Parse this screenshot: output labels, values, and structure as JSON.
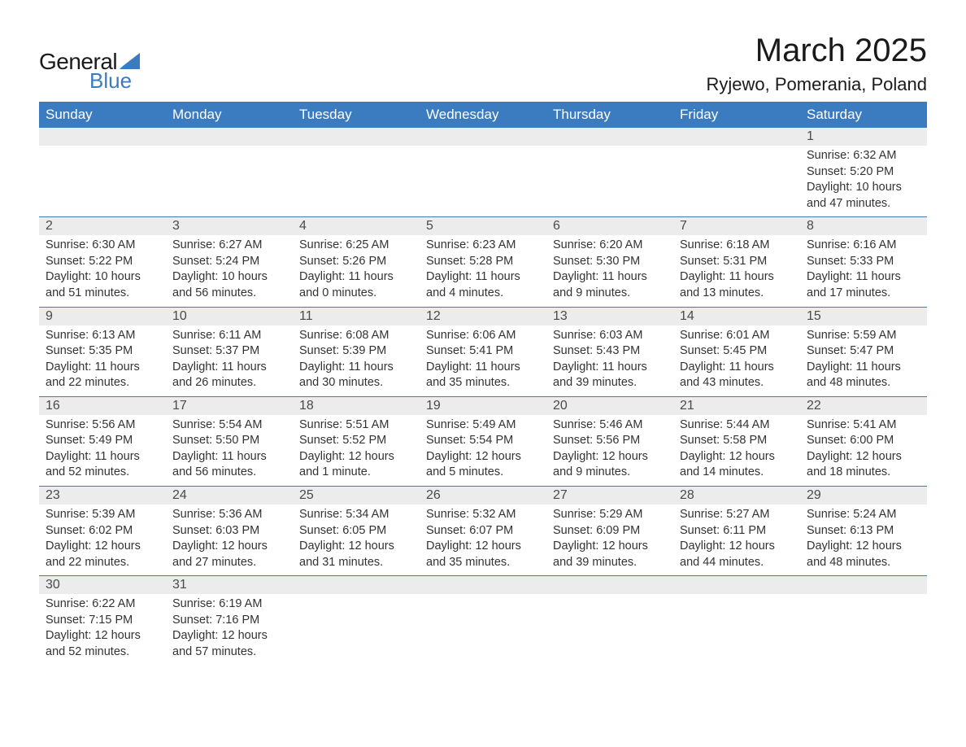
{
  "logo": {
    "text1": "General",
    "text2": "Blue",
    "accent_color": "#3b7bbf"
  },
  "title": "March 2025",
  "location": "Ryjewo, Pomerania, Poland",
  "colors": {
    "header_bg": "#3b7bbf",
    "header_fg": "#ffffff",
    "daynum_bg": "#ececec",
    "daynum_fg": "#4a4a4a",
    "body_fg": "#333333",
    "row_divider": "#3b7bbf",
    "page_bg": "#ffffff"
  },
  "typography": {
    "title_fontsize_pt": 30,
    "location_fontsize_pt": 17,
    "header_fontsize_pt": 13,
    "daynum_fontsize_pt": 12,
    "body_fontsize_pt": 11
  },
  "weekdays": [
    "Sunday",
    "Monday",
    "Tuesday",
    "Wednesday",
    "Thursday",
    "Friday",
    "Saturday"
  ],
  "weeks": [
    [
      {
        "n": "",
        "sr": "",
        "ss": "",
        "dl": ""
      },
      {
        "n": "",
        "sr": "",
        "ss": "",
        "dl": ""
      },
      {
        "n": "",
        "sr": "",
        "ss": "",
        "dl": ""
      },
      {
        "n": "",
        "sr": "",
        "ss": "",
        "dl": ""
      },
      {
        "n": "",
        "sr": "",
        "ss": "",
        "dl": ""
      },
      {
        "n": "",
        "sr": "",
        "ss": "",
        "dl": ""
      },
      {
        "n": "1",
        "sr": "Sunrise: 6:32 AM",
        "ss": "Sunset: 5:20 PM",
        "dl": "Daylight: 10 hours and 47 minutes."
      }
    ],
    [
      {
        "n": "2",
        "sr": "Sunrise: 6:30 AM",
        "ss": "Sunset: 5:22 PM",
        "dl": "Daylight: 10 hours and 51 minutes."
      },
      {
        "n": "3",
        "sr": "Sunrise: 6:27 AM",
        "ss": "Sunset: 5:24 PM",
        "dl": "Daylight: 10 hours and 56 minutes."
      },
      {
        "n": "4",
        "sr": "Sunrise: 6:25 AM",
        "ss": "Sunset: 5:26 PM",
        "dl": "Daylight: 11 hours and 0 minutes."
      },
      {
        "n": "5",
        "sr": "Sunrise: 6:23 AM",
        "ss": "Sunset: 5:28 PM",
        "dl": "Daylight: 11 hours and 4 minutes."
      },
      {
        "n": "6",
        "sr": "Sunrise: 6:20 AM",
        "ss": "Sunset: 5:30 PM",
        "dl": "Daylight: 11 hours and 9 minutes."
      },
      {
        "n": "7",
        "sr": "Sunrise: 6:18 AM",
        "ss": "Sunset: 5:31 PM",
        "dl": "Daylight: 11 hours and 13 minutes."
      },
      {
        "n": "8",
        "sr": "Sunrise: 6:16 AM",
        "ss": "Sunset: 5:33 PM",
        "dl": "Daylight: 11 hours and 17 minutes."
      }
    ],
    [
      {
        "n": "9",
        "sr": "Sunrise: 6:13 AM",
        "ss": "Sunset: 5:35 PM",
        "dl": "Daylight: 11 hours and 22 minutes."
      },
      {
        "n": "10",
        "sr": "Sunrise: 6:11 AM",
        "ss": "Sunset: 5:37 PM",
        "dl": "Daylight: 11 hours and 26 minutes."
      },
      {
        "n": "11",
        "sr": "Sunrise: 6:08 AM",
        "ss": "Sunset: 5:39 PM",
        "dl": "Daylight: 11 hours and 30 minutes."
      },
      {
        "n": "12",
        "sr": "Sunrise: 6:06 AM",
        "ss": "Sunset: 5:41 PM",
        "dl": "Daylight: 11 hours and 35 minutes."
      },
      {
        "n": "13",
        "sr": "Sunrise: 6:03 AM",
        "ss": "Sunset: 5:43 PM",
        "dl": "Daylight: 11 hours and 39 minutes."
      },
      {
        "n": "14",
        "sr": "Sunrise: 6:01 AM",
        "ss": "Sunset: 5:45 PM",
        "dl": "Daylight: 11 hours and 43 minutes."
      },
      {
        "n": "15",
        "sr": "Sunrise: 5:59 AM",
        "ss": "Sunset: 5:47 PM",
        "dl": "Daylight: 11 hours and 48 minutes."
      }
    ],
    [
      {
        "n": "16",
        "sr": "Sunrise: 5:56 AM",
        "ss": "Sunset: 5:49 PM",
        "dl": "Daylight: 11 hours and 52 minutes."
      },
      {
        "n": "17",
        "sr": "Sunrise: 5:54 AM",
        "ss": "Sunset: 5:50 PM",
        "dl": "Daylight: 11 hours and 56 minutes."
      },
      {
        "n": "18",
        "sr": "Sunrise: 5:51 AM",
        "ss": "Sunset: 5:52 PM",
        "dl": "Daylight: 12 hours and 1 minute."
      },
      {
        "n": "19",
        "sr": "Sunrise: 5:49 AM",
        "ss": "Sunset: 5:54 PM",
        "dl": "Daylight: 12 hours and 5 minutes."
      },
      {
        "n": "20",
        "sr": "Sunrise: 5:46 AM",
        "ss": "Sunset: 5:56 PM",
        "dl": "Daylight: 12 hours and 9 minutes."
      },
      {
        "n": "21",
        "sr": "Sunrise: 5:44 AM",
        "ss": "Sunset: 5:58 PM",
        "dl": "Daylight: 12 hours and 14 minutes."
      },
      {
        "n": "22",
        "sr": "Sunrise: 5:41 AM",
        "ss": "Sunset: 6:00 PM",
        "dl": "Daylight: 12 hours and 18 minutes."
      }
    ],
    [
      {
        "n": "23",
        "sr": "Sunrise: 5:39 AM",
        "ss": "Sunset: 6:02 PM",
        "dl": "Daylight: 12 hours and 22 minutes."
      },
      {
        "n": "24",
        "sr": "Sunrise: 5:36 AM",
        "ss": "Sunset: 6:03 PM",
        "dl": "Daylight: 12 hours and 27 minutes."
      },
      {
        "n": "25",
        "sr": "Sunrise: 5:34 AM",
        "ss": "Sunset: 6:05 PM",
        "dl": "Daylight: 12 hours and 31 minutes."
      },
      {
        "n": "26",
        "sr": "Sunrise: 5:32 AM",
        "ss": "Sunset: 6:07 PM",
        "dl": "Daylight: 12 hours and 35 minutes."
      },
      {
        "n": "27",
        "sr": "Sunrise: 5:29 AM",
        "ss": "Sunset: 6:09 PM",
        "dl": "Daylight: 12 hours and 39 minutes."
      },
      {
        "n": "28",
        "sr": "Sunrise: 5:27 AM",
        "ss": "Sunset: 6:11 PM",
        "dl": "Daylight: 12 hours and 44 minutes."
      },
      {
        "n": "29",
        "sr": "Sunrise: 5:24 AM",
        "ss": "Sunset: 6:13 PM",
        "dl": "Daylight: 12 hours and 48 minutes."
      }
    ],
    [
      {
        "n": "30",
        "sr": "Sunrise: 6:22 AM",
        "ss": "Sunset: 7:15 PM",
        "dl": "Daylight: 12 hours and 52 minutes."
      },
      {
        "n": "31",
        "sr": "Sunrise: 6:19 AM",
        "ss": "Sunset: 7:16 PM",
        "dl": "Daylight: 12 hours and 57 minutes."
      },
      {
        "n": "",
        "sr": "",
        "ss": "",
        "dl": ""
      },
      {
        "n": "",
        "sr": "",
        "ss": "",
        "dl": ""
      },
      {
        "n": "",
        "sr": "",
        "ss": "",
        "dl": ""
      },
      {
        "n": "",
        "sr": "",
        "ss": "",
        "dl": ""
      },
      {
        "n": "",
        "sr": "",
        "ss": "",
        "dl": ""
      }
    ]
  ]
}
